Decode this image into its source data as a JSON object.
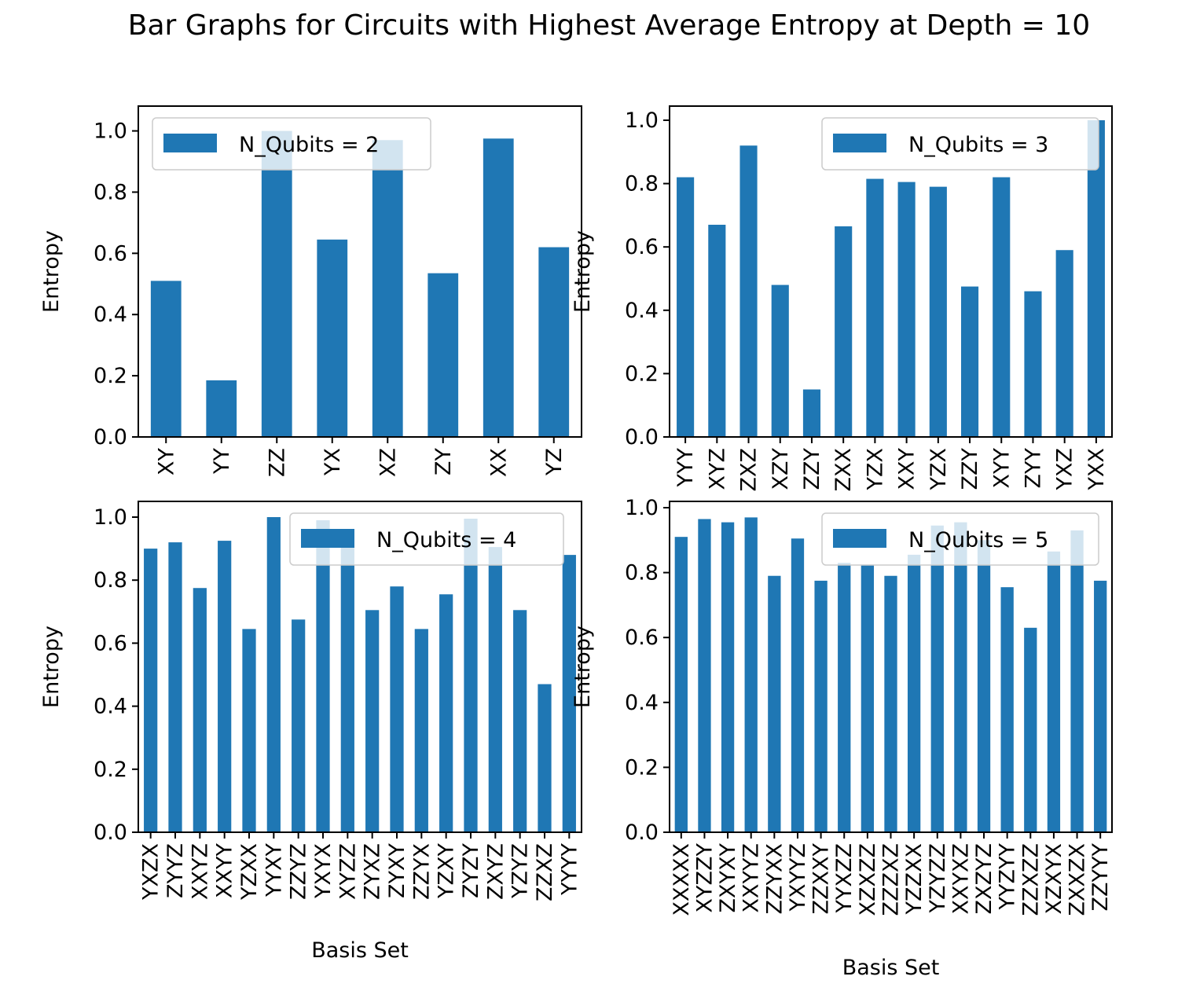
{
  "title": "Bar Graphs for Circuits with Highest Average Entropy at Depth = 10",
  "colors": {
    "bar": "#1f77b4",
    "axes": "#000000",
    "background": "#ffffff"
  },
  "chart_data": [
    {
      "type": "bar",
      "legend": "N_Qubits = 2",
      "legend_loc": "upper left",
      "xlabel": "",
      "ylabel": "Entropy",
      "ylim": [
        0,
        1.04
      ],
      "yticks": [
        "0.0",
        "0.2",
        "0.4",
        "0.6",
        "0.8",
        "1.0"
      ],
      "categories": [
        "XY",
        "YY",
        "ZZ",
        "YX",
        "XZ",
        "ZY",
        "XX",
        "YZ"
      ],
      "values": [
        0.51,
        0.185,
        1.0,
        0.645,
        0.97,
        0.535,
        0.975,
        0.62
      ]
    },
    {
      "type": "bar",
      "legend": "N_Qubits = 3",
      "legend_loc": "upper right",
      "xlabel": "",
      "ylabel": "Entropy",
      "ylim": [
        0,
        1.0
      ],
      "yticks": [
        "0.0",
        "0.2",
        "0.4",
        "0.6",
        "0.8",
        "1.0"
      ],
      "categories": [
        "YYY",
        "XYZ",
        "ZXZ",
        "XZY",
        "ZZY",
        "ZXX",
        "YZX",
        "XXY",
        "YZX",
        "ZZY",
        "XYY",
        "ZYY",
        "YXZ",
        "YXX"
      ],
      "values": [
        0.82,
        0.67,
        0.92,
        0.48,
        0.15,
        0.665,
        0.815,
        0.805,
        0.79,
        0.475,
        0.82,
        0.46,
        0.59,
        1.0
      ]
    },
    {
      "type": "bar",
      "legend": "N_Qubits = 4",
      "legend_loc": "upper right",
      "xlabel": "Basis Set",
      "ylabel": "Entropy",
      "ylim": [
        0,
        1.0
      ],
      "yticks": [
        "0.0",
        "0.2",
        "0.4",
        "0.6",
        "0.8",
        "1.0"
      ],
      "categories": [
        "YXZX",
        "ZYYZ",
        "XXYZ",
        "XXYY",
        "YZXX",
        "YYXY",
        "ZZYZ",
        "YXYX",
        "XYZZ",
        "ZYXZ",
        "ZYXY",
        "ZZYX",
        "YZXY",
        "ZYZY",
        "ZXYZ",
        "YZYZ",
        "ZZXZ",
        "YYYY"
      ],
      "values": [
        0.9,
        0.92,
        0.775,
        0.925,
        0.645,
        1.0,
        0.675,
        0.99,
        0.92,
        0.705,
        0.78,
        0.645,
        0.755,
        0.995,
        0.905,
        0.705,
        0.47,
        0.88
      ]
    },
    {
      "type": "bar",
      "legend": "N_Qubits = 5",
      "legend_loc": "upper right",
      "xlabel": "Basis Set",
      "ylabel": "Entropy",
      "ylim": [
        0,
        1.0
      ],
      "yticks": [
        "0.0",
        "0.2",
        "0.4",
        "0.6",
        "0.8",
        "1.0"
      ],
      "categories": [
        "XXXXX",
        "XYZZY",
        "ZXYXY",
        "XXYYZ",
        "ZZYXX",
        "YXYYZ",
        "ZZXXY",
        "YYXZZ",
        "XZXZZ",
        "ZZZXZ",
        "YZZXX",
        "YZYZZ",
        "XXYXZ",
        "ZXZYZ",
        "YYZYY",
        "ZZXZZ",
        "XZXYX",
        "ZXXZX",
        "ZZYYY"
      ],
      "values": [
        0.91,
        0.965,
        0.955,
        0.97,
        0.79,
        0.905,
        0.775,
        0.83,
        0.825,
        0.79,
        0.855,
        0.945,
        0.955,
        0.9,
        0.755,
        0.63,
        0.865,
        0.93,
        0.775
      ]
    }
  ]
}
